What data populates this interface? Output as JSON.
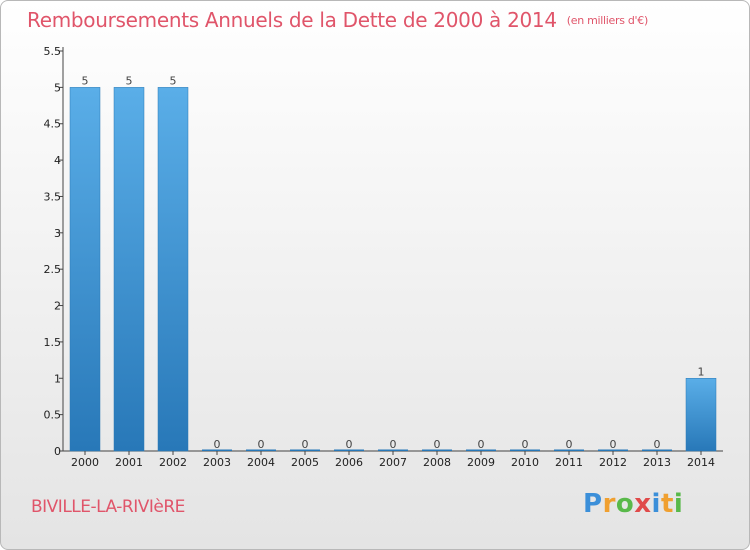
{
  "title": "Remboursements Annuels de la Dette de 2000 à 2014",
  "unit": "(en milliers d'€)",
  "commune": "BIVILLE-LA-RIVIèRE",
  "logo": {
    "letters": [
      "P",
      "r",
      "o",
      "x",
      "i",
      "t",
      "i"
    ],
    "colors": [
      "#3b8fd9",
      "#f0a030",
      "#59b94a",
      "#e04a4a",
      "#3b8fd9",
      "#f0a030",
      "#59b94a"
    ]
  },
  "colors": {
    "bar_top": "#5aaee8",
    "bar_bottom": "#2878b8",
    "title": "#e0556a"
  },
  "chart_data": {
    "type": "bar",
    "title": "Remboursements Annuels de la Dette de 2000 à 2014",
    "categories": [
      "2000",
      "2001",
      "2002",
      "2003",
      "2004",
      "2005",
      "2006",
      "2007",
      "2008",
      "2009",
      "2010",
      "2011",
      "2012",
      "2013",
      "2014"
    ],
    "values": [
      5,
      5,
      5,
      0,
      0,
      0,
      0,
      0,
      0,
      0,
      0,
      0,
      0,
      0,
      1
    ],
    "value_labels": [
      "5",
      "5",
      "5",
      "0",
      "0",
      "0",
      "0",
      "0",
      "0",
      "0",
      "0",
      "0",
      "0",
      "0",
      "1"
    ],
    "ylim": [
      0,
      5.5
    ],
    "yticks": [
      0,
      0.5,
      1,
      1.5,
      2,
      2.5,
      3,
      3.5,
      4,
      4.5,
      5,
      5.5
    ],
    "ytick_labels": [
      "0",
      "0.5",
      "1",
      "1.5",
      "2",
      "2.5",
      "3",
      "3.5",
      "4",
      "4.5",
      "5",
      "5.5"
    ],
    "grid": false,
    "legend": "none"
  }
}
